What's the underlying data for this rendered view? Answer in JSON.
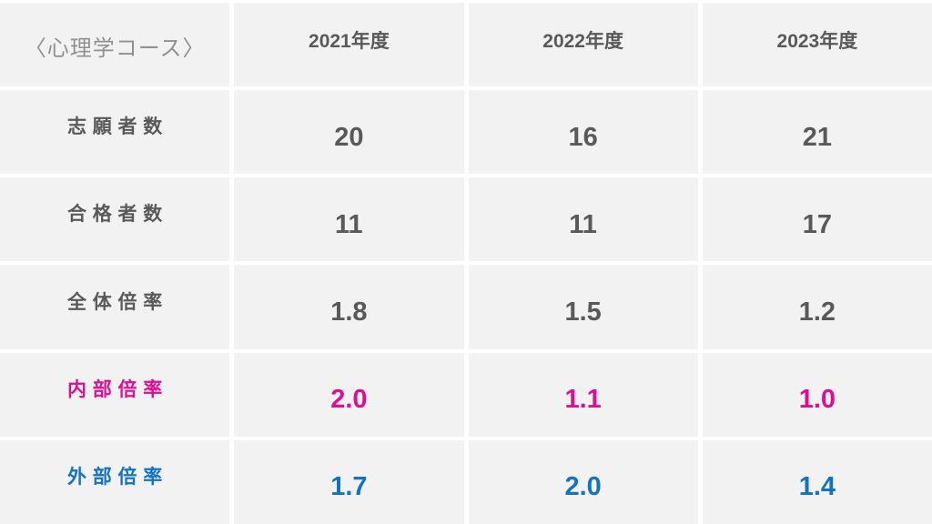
{
  "colors": {
    "cell_bg": "#f2f2f2",
    "gap": "#ffffff",
    "text_dark": "#595959",
    "title_gray": "#909090",
    "pink": "#de0d92",
    "blue": "#1372c2"
  },
  "table": {
    "title": "〈心理学コース〉",
    "years": [
      "2021年度",
      "2022年度",
      "2023年度"
    ],
    "rows": [
      {
        "label": "志願者数",
        "values": [
          "20",
          "16",
          "21"
        ],
        "accent": "none"
      },
      {
        "label": "合格者数",
        "values": [
          "11",
          "11",
          "17"
        ],
        "accent": "none"
      },
      {
        "label": "全体倍率",
        "values": [
          "1.8",
          "1.5",
          "1.2"
        ],
        "accent": "none"
      },
      {
        "label": "内部倍率",
        "values": [
          "2.0",
          "1.1",
          "1.0"
        ],
        "accent": "pink"
      },
      {
        "label": "外部倍率",
        "values": [
          "1.7",
          "2.0",
          "1.4"
        ],
        "accent": "blue"
      }
    ]
  },
  "chart_data": {
    "type": "table",
    "title": "〈心理学コース〉",
    "columns": [
      "2021年度",
      "2022年度",
      "2023年度"
    ],
    "rows": [
      {
        "label": "志願者数",
        "values": [
          20,
          16,
          21
        ]
      },
      {
        "label": "合格者数",
        "values": [
          11,
          11,
          17
        ]
      },
      {
        "label": "全体倍率",
        "values": [
          1.8,
          1.5,
          1.2
        ]
      },
      {
        "label": "内部倍率",
        "values": [
          2.0,
          1.1,
          1.0
        ],
        "color": "#de0d92"
      },
      {
        "label": "外部倍率",
        "values": [
          1.7,
          2.0,
          1.4
        ],
        "color": "#1372c2"
      }
    ],
    "layout": {
      "grid": "light-gray cells with white separators",
      "legend": "none"
    }
  }
}
